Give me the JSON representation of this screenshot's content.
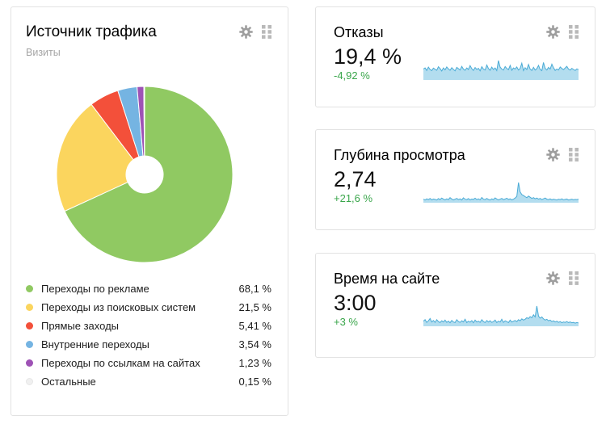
{
  "theme": {
    "background": "#ffffff",
    "card_border": "#e2e2e2",
    "title_color": "#000000",
    "subtitle_color": "#a5a5a5",
    "value_color": "#111111",
    "positive_change_color": "#3aa64b",
    "gear_icon_color": "#9e9e9e",
    "drag_icon_color": "#b9b9b9",
    "spark_line_color": "#4aabd6",
    "spark_fill_color": "#b3ddef",
    "icons": [
      "gear-icon",
      "drag-handle-icon"
    ]
  },
  "traffic_panel": {
    "title": "Источник трафика",
    "subtitle": "Визиты"
  },
  "metric_panels": [
    {
      "title": "Отказы",
      "value": "19,4 %",
      "change": "-4,92 %"
    },
    {
      "title": "Глубина просмотра",
      "value": "2,74",
      "change": "+21,6 %"
    },
    {
      "title": "Время на сайте",
      "value": "3:00",
      "change": "+3 %"
    }
  ],
  "chart_data": [
    {
      "panel": "Источник трафика",
      "type": "pie",
      "donut": true,
      "start_angle_deg_from_12": 0,
      "direction": "clockwise",
      "slices": [
        {
          "label": "Переходы по рекламе",
          "value_pct": 68.1,
          "display": "68,1 %",
          "color": "#90c962"
        },
        {
          "label": "Переходы из поисковых систем",
          "value_pct": 21.5,
          "display": "21,5 %",
          "color": "#fbd55e"
        },
        {
          "label": "Прямые заходы",
          "value_pct": 5.41,
          "display": "5,41 %",
          "color": "#f3503a"
        },
        {
          "label": "Внутренние переходы",
          "value_pct": 3.54,
          "display": "3,54 %",
          "color": "#75b4e2"
        },
        {
          "label": "Переходы по ссылкам на сайтах",
          "value_pct": 1.23,
          "display": "1,23 %",
          "color": "#9e52b5"
        },
        {
          "label": "Остальные",
          "value_pct": 0.15,
          "display": "0,15 %",
          "color": "#f0f0f0"
        }
      ]
    },
    {
      "panel": "Отказы",
      "type": "area",
      "ylim": [
        0,
        100
      ],
      "values": [
        52,
        58,
        45,
        62,
        50,
        44,
        57,
        51,
        46,
        64,
        55,
        42,
        58,
        48,
        63,
        53,
        46,
        59,
        50,
        43,
        61,
        54,
        47,
        66,
        52,
        46,
        58,
        50,
        70,
        54,
        45,
        60,
        50,
        56,
        43,
        64,
        52,
        47,
        73,
        55,
        46,
        62,
        50,
        58,
        44,
        96,
        62,
        52,
        47,
        65,
        55,
        49,
        71,
        46,
        58,
        52,
        63,
        47,
        55,
        82,
        44,
        59,
        50,
        76,
        52,
        45,
        61,
        47,
        54,
        71,
        50,
        44,
        86,
        56,
        47,
        61,
        52,
        77,
        59,
        45,
        52,
        47,
        63,
        55,
        49,
        58,
        66,
        52,
        47,
        56,
        50,
        45,
        53,
        49
      ]
    },
    {
      "panel": "Глубина просмотра",
      "type": "area",
      "ylim": [
        0,
        100
      ],
      "values": [
        14,
        10,
        16,
        12,
        18,
        11,
        15,
        13,
        10,
        17,
        12,
        20,
        14,
        11,
        16,
        12,
        22,
        15,
        11,
        14,
        18,
        12,
        16,
        10,
        21,
        14,
        12,
        17,
        11,
        15,
        13,
        19,
        12,
        16,
        11,
        23,
        14,
        12,
        18,
        13,
        10,
        16,
        12,
        21,
        15,
        11,
        14,
        18,
        12,
        15,
        19,
        13,
        16,
        11,
        14,
        20,
        28,
        100,
        52,
        38,
        33,
        27,
        22,
        30,
        24,
        18,
        22,
        16,
        20,
        14,
        18,
        12,
        16,
        20,
        14,
        12,
        16,
        11,
        14,
        12,
        10,
        14,
        12,
        16,
        11,
        13,
        15,
        10,
        12,
        14,
        11,
        13,
        12,
        14
      ]
    },
    {
      "panel": "Время на сайте",
      "type": "area",
      "ylim": [
        0,
        100
      ],
      "values": [
        22,
        30,
        16,
        24,
        36,
        18,
        26,
        16,
        30,
        20,
        15,
        24,
        18,
        28,
        16,
        22,
        14,
        26,
        18,
        15,
        30,
        20,
        16,
        24,
        18,
        32,
        15,
        22,
        17,
        25,
        14,
        28,
        18,
        22,
        16,
        30,
        20,
        15,
        26,
        18,
        24,
        16,
        20,
        28,
        15,
        22,
        18,
        32,
        16,
        24,
        20,
        15,
        28,
        18,
        22,
        26,
        20,
        30,
        24,
        34,
        28,
        32,
        40,
        36,
        46,
        40,
        55,
        44,
        100,
        48,
        38,
        44,
        34,
        28,
        32,
        24,
        28,
        20,
        24,
        18,
        22,
        16,
        20,
        14,
        18,
        16,
        20,
        15,
        18,
        14,
        16,
        12,
        15,
        13
      ]
    }
  ]
}
